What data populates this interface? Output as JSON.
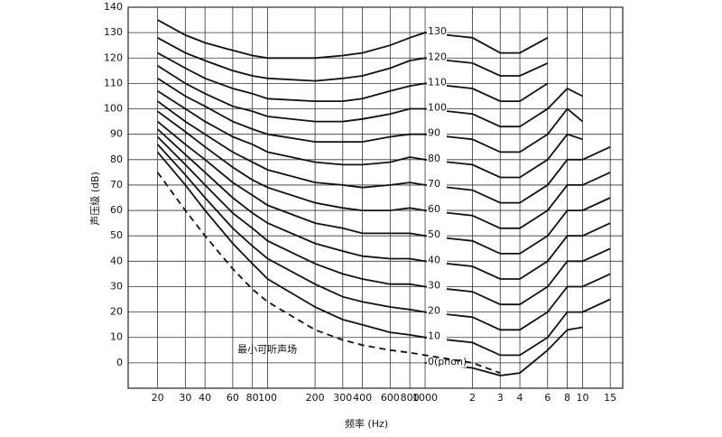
{
  "chart_data": {
    "type": "line",
    "xlabel": "频率 (Hz)",
    "ylabel": "声压级 (dB)",
    "log_x": true,
    "grid": true,
    "x": [
      20,
      30,
      40,
      60,
      80,
      100,
      200,
      300,
      400,
      600,
      800,
      1000,
      2000,
      3000,
      4000,
      6000,
      8000,
      10000,
      15000
    ],
    "xlim": [
      13,
      18000
    ],
    "xticks": [
      20,
      30,
      40,
      60,
      80,
      100,
      200,
      300,
      400,
      600,
      800,
      1000,
      {
        "value": 2000,
        "label": "2"
      },
      {
        "value": 3000,
        "label": "3"
      },
      {
        "value": 4000,
        "label": "4"
      },
      {
        "value": 6000,
        "label": "6"
      },
      {
        "value": 8000,
        "label": "8"
      },
      {
        "value": 10000,
        "label": "10"
      },
      {
        "value": 15000,
        "label": "15"
      }
    ],
    "ylim": [
      -10,
      140
    ],
    "yticks": [
      0,
      10,
      20,
      30,
      40,
      50,
      60,
      70,
      80,
      90,
      100,
      110,
      120,
      130,
      140
    ],
    "series": [
      {
        "name": "0(phon)",
        "color": "#111111",
        "style": "solid",
        "values": [
          null,
          null,
          null,
          null,
          null,
          null,
          null,
          null,
          null,
          null,
          null,
          0,
          -2,
          -5,
          -4,
          5,
          13,
          14,
          null
        ]
      },
      {
        "name": "10",
        "color": "#111111",
        "style": "solid",
        "values": [
          83,
          70,
          60,
          47,
          39,
          33,
          22,
          17,
          15,
          12,
          11,
          10,
          8,
          3,
          3,
          10,
          20,
          20,
          25
        ]
      },
      {
        "name": "20",
        "color": "#111111",
        "style": "solid",
        "values": [
          86,
          74,
          65,
          53,
          46,
          41,
          31,
          26,
          24,
          22,
          21,
          20,
          18,
          13,
          13,
          20,
          30,
          30,
          35
        ]
      },
      {
        "name": "30",
        "color": "#111111",
        "style": "solid",
        "values": [
          89,
          78,
          70,
          59,
          53,
          48,
          39,
          35,
          33,
          31,
          31,
          30,
          28,
          23,
          23,
          30,
          40,
          40,
          45
        ]
      },
      {
        "name": "40",
        "color": "#111111",
        "style": "solid",
        "values": [
          92,
          82,
          75,
          65,
          59,
          55,
          47,
          44,
          42,
          41,
          41,
          40,
          38,
          33,
          33,
          40,
          50,
          50,
          55
        ]
      },
      {
        "name": "50",
        "color": "#111111",
        "style": "solid",
        "values": [
          95,
          86,
          80,
          71,
          66,
          62,
          55,
          53,
          51,
          51,
          51,
          50,
          48,
          43,
          43,
          50,
          60,
          60,
          65
        ]
      },
      {
        "name": "60",
        "color": "#111111",
        "style": "solid",
        "values": [
          99,
          91,
          85,
          77,
          72,
          69,
          63,
          61,
          60,
          60,
          61,
          60,
          58,
          53,
          53,
          60,
          70,
          70,
          75
        ]
      },
      {
        "name": "70",
        "color": "#111111",
        "style": "solid",
        "values": [
          103,
          95,
          90,
          83,
          79,
          76,
          71,
          70,
          69,
          70,
          71,
          70,
          68,
          63,
          63,
          70,
          80,
          80,
          85
        ]
      },
      {
        "name": "80",
        "color": "#111111",
        "style": "solid",
        "values": [
          107,
          100,
          95,
          89,
          86,
          83,
          79,
          78,
          78,
          79,
          81,
          80,
          78,
          73,
          73,
          80,
          90,
          88,
          null
        ]
      },
      {
        "name": "90",
        "color": "#111111",
        "style": "solid",
        "values": [
          112,
          105,
          101,
          95,
          92,
          90,
          87,
          87,
          87,
          89,
          90,
          90,
          88,
          83,
          83,
          90,
          100,
          95,
          null
        ]
      },
      {
        "name": "100",
        "color": "#111111",
        "style": "solid",
        "values": [
          117,
          110,
          106,
          101,
          99,
          97,
          95,
          95,
          96,
          98,
          100,
          100,
          98,
          93,
          93,
          100,
          108,
          105,
          null
        ]
      },
      {
        "name": "110",
        "color": "#111111",
        "style": "solid",
        "values": [
          122,
          116,
          112,
          108,
          106,
          104,
          103,
          103,
          104,
          107,
          109,
          110,
          108,
          103,
          103,
          110,
          null,
          null,
          null
        ]
      },
      {
        "name": "120",
        "color": "#111111",
        "style": "solid",
        "values": [
          128,
          122,
          119,
          115,
          113,
          112,
          111,
          112,
          113,
          116,
          119,
          120,
          118,
          113,
          113,
          118,
          null,
          null,
          null
        ]
      },
      {
        "name": "130",
        "color": "#111111",
        "style": "solid",
        "values": [
          135,
          129,
          126,
          123,
          121,
          120,
          120,
          121,
          122,
          125,
          128,
          130,
          128,
          122,
          122,
          128,
          null,
          null,
          null
        ]
      },
      {
        "name": "最小可听声场",
        "color": "#111111",
        "style": "dashed",
        "values": [
          75,
          60,
          50,
          37,
          29,
          24,
          13,
          9,
          7,
          5,
          4,
          3,
          0,
          -4,
          null,
          null,
          null,
          null,
          null
        ]
      }
    ]
  }
}
